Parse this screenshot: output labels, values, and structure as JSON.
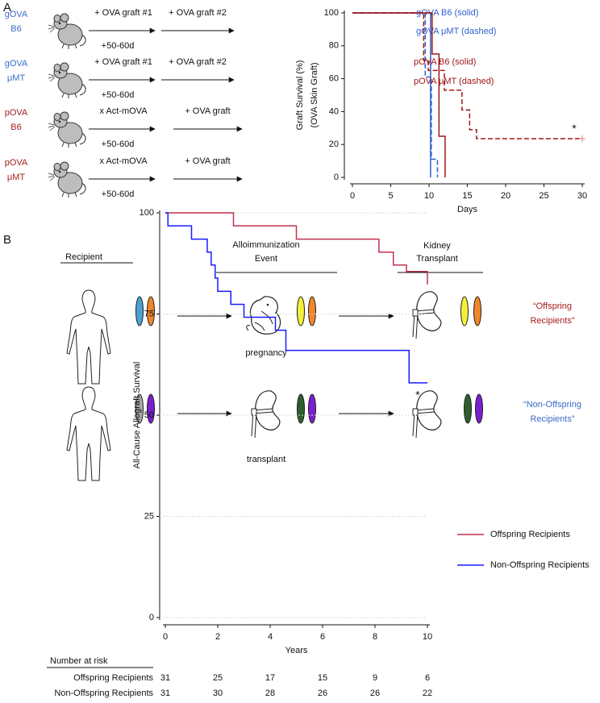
{
  "panels": [
    "A",
    "B"
  ],
  "diagram_a": {
    "groups": [
      {
        "name": [
          "gOVA",
          "B6"
        ],
        "color": "#3b6cc6",
        "steps": [
          "+ OVA graft #1",
          "+ OVA graft #2"
        ],
        "interval": "+50-60d"
      },
      {
        "name": [
          "gOVA",
          "μMT"
        ],
        "color": "#3b6cc6",
        "steps": [
          "+ OVA graft #1",
          "+ OVA graft #2"
        ],
        "interval": "+50-60d"
      },
      {
        "name": [
          "pOVA",
          "B6"
        ],
        "color": "#a51c1c",
        "steps": [
          "x Act-mOVA",
          "+ OVA graft"
        ],
        "interval": "+50-60d"
      },
      {
        "name": [
          "pOVA",
          "μMT"
        ],
        "color": "#a51c1c",
        "steps": [
          "x Act-mOVA",
          "+ OVA graft"
        ],
        "interval": "+50-60d"
      }
    ]
  },
  "diagram_b": {
    "recipient": "Recipient",
    "event": [
      "Alloimmunization",
      "Event"
    ],
    "transplant": [
      "Kidney",
      "Transplant"
    ],
    "rows": [
      {
        "event_label": "pregnancy",
        "group": [
          "“Offspring",
          "Recipients”"
        ],
        "color": "#a51c1c"
      },
      {
        "event_label": "transplant",
        "group": [
          "“Non-Offspring",
          "Recipients”"
        ],
        "color": "#3b6cc6"
      }
    ]
  },
  "chart_data": [
    {
      "type": "line",
      "step": true,
      "ylabel": [
        "Graft Survival (%)",
        "(OVA Skin Graft)"
      ],
      "xlabel": "Days",
      "annotation": "*",
      "xlim": [
        0,
        30
      ],
      "xticks": [
        0,
        5,
        10,
        15,
        20,
        25,
        30
      ],
      "ylim": [
        0,
        100
      ],
      "yticks": [
        0,
        20,
        40,
        60,
        80,
        100
      ],
      "grid": false,
      "series": [
        {
          "name": "gOVA B6 (solid)",
          "color": "#2f5fd0",
          "dash": false,
          "x": [
            0,
            10.2
          ],
          "values": [
            100,
            0
          ]
        },
        {
          "name": "gOVA μMT (dashed)",
          "color": "#2f5fd0",
          "dash": true,
          "x": [
            0,
            9.5,
            10.3,
            11.1
          ],
          "values": [
            100,
            61,
            11,
            0
          ]
        },
        {
          "name": "pOVA B6 (solid)",
          "color": "#a01818",
          "dash": false,
          "x": [
            0,
            10.4,
            11.3,
            12.1
          ],
          "values": [
            100,
            75,
            25,
            0
          ]
        },
        {
          "name": "pOVA μMT (dashed)",
          "color": "#a01818",
          "dash": true,
          "x": [
            0,
            9.3,
            9.9,
            12,
            14.3,
            15.3,
            16.2,
            30
          ],
          "values": [
            100,
            71,
            65,
            53,
            41,
            29,
            23.5,
            23.5
          ]
        }
      ]
    },
    {
      "type": "line",
      "step": true,
      "ylabel": "All-Cause Allograft Survival",
      "xlabel": "Years",
      "annotation": "*",
      "xlim": [
        0,
        10
      ],
      "xticks": [
        0,
        2,
        4,
        6,
        8,
        10
      ],
      "ylim": [
        0,
        100
      ],
      "yticks": [
        0,
        25,
        50,
        75,
        100
      ],
      "grid": true,
      "series": [
        {
          "name": "Offspring Recipients",
          "color": "#c2304f",
          "dash": false,
          "x": [
            0,
            2.6,
            5,
            8.15,
            8.7,
            9.2,
            10
          ],
          "values": [
            100,
            96.8,
            93.5,
            90.3,
            87.1,
            85.5,
            82.3
          ]
        },
        {
          "name": "Non-Offspring Recipients",
          "color": "#1a1aff",
          "dash": false,
          "x": [
            0,
            0.1,
            1.0,
            1.6,
            1.75,
            1.9,
            2.0,
            2.5,
            3.0,
            4.2,
            4.6,
            9.3,
            10
          ],
          "values": [
            100,
            96.8,
            93.5,
            90.3,
            87.1,
            83.9,
            80.6,
            77.4,
            74.2,
            71,
            66,
            58,
            58
          ]
        }
      ]
    }
  ],
  "risk_table": {
    "title": "Number at risk",
    "rows": [
      {
        "name": "Offspring Recipients",
        "values": [
          31,
          25,
          17,
          15,
          9,
          6
        ]
      },
      {
        "name": "Non-Offspring Recipients",
        "values": [
          31,
          30,
          28,
          26,
          26,
          22
        ]
      }
    ]
  }
}
